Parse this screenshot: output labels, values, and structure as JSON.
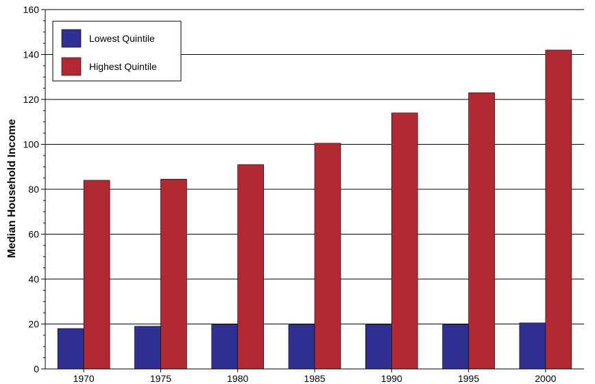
{
  "chart_data": {
    "type": "bar",
    "categories": [
      "1970",
      "1975",
      "1980",
      "1985",
      "1990",
      "1995",
      "2000"
    ],
    "series": [
      {
        "name": "Lowest Quintile",
        "color": "#2e3191",
        "values": [
          18,
          19,
          19.7,
          19.7,
          19.7,
          19.7,
          20.5
        ]
      },
      {
        "name": "Highest Quintile",
        "color": "#b22932",
        "values": [
          84,
          84.5,
          91,
          100.5,
          114,
          123,
          142
        ]
      }
    ],
    "title": "",
    "xlabel": "",
    "ylabel": "Median Household Income",
    "ylim": [
      0,
      160
    ],
    "yticks": [
      0,
      20,
      40,
      60,
      80,
      100,
      120,
      140,
      160
    ],
    "grid": true,
    "legend": "top-left"
  }
}
